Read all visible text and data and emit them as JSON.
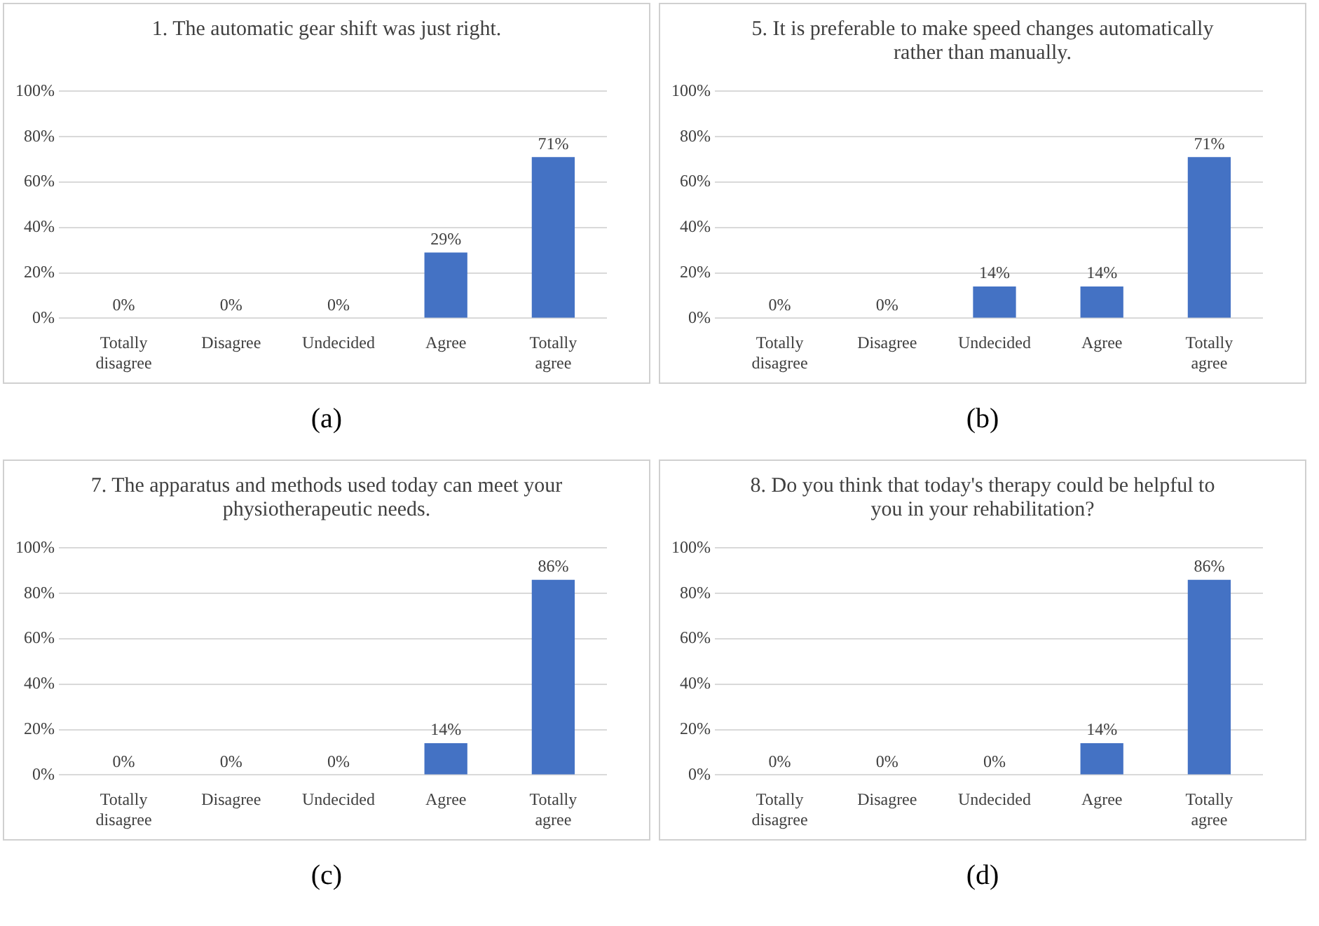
{
  "chart_data": [
    {
      "type": "bar",
      "title": "1. The automatic gear shift was just right.",
      "categories": [
        "Totally disagree",
        "Disagree",
        "Undecided",
        "Agree",
        "Totally agree"
      ],
      "values": [
        0,
        0,
        0,
        29,
        71
      ],
      "value_labels": [
        "0%",
        "0%",
        "0%",
        "29%",
        "71%"
      ],
      "color": "#4472c4",
      "ylim": [
        0,
        100
      ],
      "yticks": [
        {
          "value": 0,
          "label": "0%"
        },
        {
          "value": 20,
          "label": "20%"
        },
        {
          "value": 40,
          "label": "40%"
        },
        {
          "value": 60,
          "label": "60%"
        },
        {
          "value": 80,
          "label": "80%"
        },
        {
          "value": 100,
          "label": "100%"
        }
      ],
      "grid": "y",
      "annotations": [
        "(a)"
      ]
    },
    {
      "type": "bar",
      "title": "5. It is preferable to make speed changes automatically rather than manually.",
      "categories": [
        "Totally disagree",
        "Disagree",
        "Undecided",
        "Agree",
        "Totally agree"
      ],
      "values": [
        0,
        0,
        14,
        14,
        71
      ],
      "value_labels": [
        "0%",
        "0%",
        "14%",
        "14%",
        "71%"
      ],
      "color": "#4472c4",
      "ylim": [
        0,
        100
      ],
      "yticks": [
        {
          "value": 0,
          "label": "0%"
        },
        {
          "value": 20,
          "label": "20%"
        },
        {
          "value": 40,
          "label": "40%"
        },
        {
          "value": 60,
          "label": "60%"
        },
        {
          "value": 80,
          "label": "80%"
        },
        {
          "value": 100,
          "label": "100%"
        }
      ],
      "grid": "y",
      "annotations": [
        "(b)"
      ]
    },
    {
      "type": "bar",
      "title": "7. The apparatus and methods used today can meet your physiotherapeutic needs.",
      "categories": [
        "Totally disagree",
        "Disagree",
        "Undecided",
        "Agree",
        "Totally agree"
      ],
      "values": [
        0,
        0,
        0,
        14,
        86
      ],
      "value_labels": [
        "0%",
        "0%",
        "0%",
        "14%",
        "86%"
      ],
      "color": "#4472c4",
      "ylim": [
        0,
        100
      ],
      "yticks": [
        {
          "value": 0,
          "label": "0%"
        },
        {
          "value": 20,
          "label": "20%"
        },
        {
          "value": 40,
          "label": "40%"
        },
        {
          "value": 60,
          "label": "60%"
        },
        {
          "value": 80,
          "label": "80%"
        },
        {
          "value": 100,
          "label": "100%"
        }
      ],
      "grid": "y",
      "annotations": [
        "(c)"
      ]
    },
    {
      "type": "bar",
      "title": "8. Do you think that today's therapy could be helpful to you in your rehabilitation?",
      "categories": [
        "Totally disagree",
        "Disagree",
        "Undecided",
        "Agree",
        "Totally agree"
      ],
      "values": [
        0,
        0,
        0,
        14,
        86
      ],
      "value_labels": [
        "0%",
        "0%",
        "0%",
        "14%",
        "86%"
      ],
      "color": "#4472c4",
      "ylim": [
        0,
        100
      ],
      "yticks": [
        {
          "value": 0,
          "label": "0%"
        },
        {
          "value": 20,
          "label": "20%"
        },
        {
          "value": 40,
          "label": "40%"
        },
        {
          "value": 60,
          "label": "60%"
        },
        {
          "value": 80,
          "label": "80%"
        },
        {
          "value": 100,
          "label": "100%"
        }
      ],
      "grid": "y",
      "annotations": [
        "(d)"
      ]
    }
  ]
}
